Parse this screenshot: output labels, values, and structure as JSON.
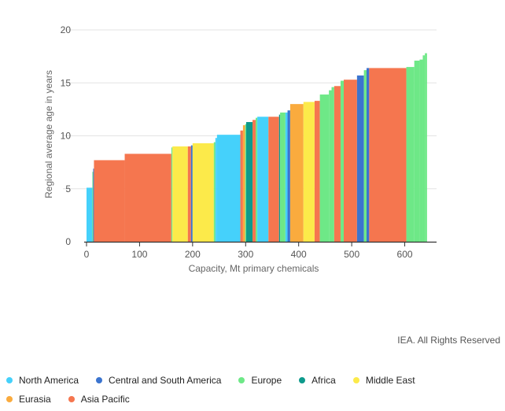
{
  "chart_data": {
    "type": "bar",
    "subtype": "variable-width step bars (capacity vs. regional average age)",
    "xlabel": "Capacity, Mt primary chemicals",
    "ylabel": "Regional average age in years",
    "xlim": [
      0,
      660
    ],
    "ylim": [
      0,
      20
    ],
    "xticks": [
      0,
      100,
      200,
      300,
      400,
      500,
      600
    ],
    "yticks": [
      0,
      5,
      10,
      15,
      20
    ],
    "grid": "horizontal",
    "series": [
      {
        "name": "North America",
        "color": "#45d1fb"
      },
      {
        "name": "Central and South America",
        "color": "#3b74cf"
      },
      {
        "name": "Europe",
        "color": "#6ee887"
      },
      {
        "name": "Africa",
        "color": "#0d9a8c"
      },
      {
        "name": "Middle East",
        "color": "#fcea4a"
      },
      {
        "name": "Eurasia",
        "color": "#faab3e"
      },
      {
        "name": "Asia Pacific",
        "color": "#f5764f"
      }
    ],
    "bars": [
      {
        "region": "North America",
        "start": 0,
        "width": 11,
        "value": 5.1
      },
      {
        "region": "Europe",
        "start": 11,
        "width": 1.5,
        "value": 6.6
      },
      {
        "region": "Central and South America",
        "start": 12.5,
        "width": 1.5,
        "value": 6.9
      },
      {
        "region": "Asia Pacific",
        "start": 14,
        "width": 58,
        "value": 7.7
      },
      {
        "region": "Asia Pacific",
        "start": 72,
        "width": 88,
        "value": 8.3
      },
      {
        "region": "Europe",
        "start": 160,
        "width": 2,
        "value": 8.9
      },
      {
        "region": "Middle East",
        "start": 162,
        "width": 29,
        "value": 9.0
      },
      {
        "region": "Asia Pacific",
        "start": 191,
        "width": 6,
        "value": 9.0
      },
      {
        "region": "Central and South America",
        "start": 197,
        "width": 3,
        "value": 9.1
      },
      {
        "region": "Middle East",
        "start": 200,
        "width": 40,
        "value": 9.3
      },
      {
        "region": "Europe",
        "start": 240,
        "width": 3,
        "value": 9.4
      },
      {
        "region": "North America",
        "start": 243,
        "width": 3,
        "value": 9.8
      },
      {
        "region": "North America",
        "start": 246,
        "width": 44,
        "value": 10.1
      },
      {
        "region": "Asia Pacific",
        "start": 290,
        "width": 5,
        "value": 10.5
      },
      {
        "region": "Eurasia",
        "start": 295,
        "width": 4,
        "value": 11.0
      },
      {
        "region": "Europe",
        "start": 299,
        "width": 2,
        "value": 11.1
      },
      {
        "region": "Africa",
        "start": 301,
        "width": 12,
        "value": 11.3
      },
      {
        "region": "Asia Pacific",
        "start": 313,
        "width": 6,
        "value": 11.5
      },
      {
        "region": "Europe",
        "start": 319,
        "width": 3,
        "value": 11.7
      },
      {
        "region": "North America",
        "start": 322,
        "width": 21,
        "value": 11.8
      },
      {
        "region": "Asia Pacific",
        "start": 343,
        "width": 20,
        "value": 11.8
      },
      {
        "region": "Africa",
        "start": 363,
        "width": 2,
        "value": 12.0
      },
      {
        "region": "Europe",
        "start": 365,
        "width": 10,
        "value": 12.2
      },
      {
        "region": "North America",
        "start": 375,
        "width": 4,
        "value": 12.2
      },
      {
        "region": "Central and South America",
        "start": 379,
        "width": 5,
        "value": 12.4
      },
      {
        "region": "Eurasia",
        "start": 384,
        "width": 25,
        "value": 13.0
      },
      {
        "region": "Middle East",
        "start": 409,
        "width": 21,
        "value": 13.2
      },
      {
        "region": "Asia Pacific",
        "start": 430,
        "width": 10,
        "value": 13.3
      },
      {
        "region": "Europe",
        "start": 440,
        "width": 17,
        "value": 13.9
      },
      {
        "region": "Europe",
        "start": 457,
        "width": 5,
        "value": 14.3
      },
      {
        "region": "Europe",
        "start": 462,
        "width": 5,
        "value": 14.6
      },
      {
        "region": "Asia Pacific",
        "start": 467,
        "width": 12,
        "value": 14.7
      },
      {
        "region": "Europe",
        "start": 479,
        "width": 6,
        "value": 15.2
      },
      {
        "region": "Asia Pacific",
        "start": 485,
        "width": 25,
        "value": 15.3
      },
      {
        "region": "Central and South America",
        "start": 510,
        "width": 13,
        "value": 15.7
      },
      {
        "region": "Europe",
        "start": 523,
        "width": 5,
        "value": 16.2
      },
      {
        "region": "Central and South America",
        "start": 528,
        "width": 5,
        "value": 16.4
      },
      {
        "region": "Asia Pacific",
        "start": 533,
        "width": 70,
        "value": 16.4
      },
      {
        "region": "Europe",
        "start": 603,
        "width": 15,
        "value": 16.5
      },
      {
        "region": "Europe",
        "start": 618,
        "width": 10,
        "value": 17.1
      },
      {
        "region": "Europe",
        "start": 628,
        "width": 6,
        "value": 17.2
      },
      {
        "region": "Europe",
        "start": 634,
        "width": 4,
        "value": 17.6
      },
      {
        "region": "Europe",
        "start": 638,
        "width": 4,
        "value": 17.8
      }
    ]
  },
  "credit": "IEA. All Rights Reserved",
  "legend": {
    "row1": [
      {
        "label": "North America",
        "color": "#45d1fb"
      },
      {
        "label": "Central and South America",
        "color": "#3b74cf"
      },
      {
        "label": "Europe",
        "color": "#6ee887"
      },
      {
        "label": "Africa",
        "color": "#0d9a8c"
      },
      {
        "label": "Middle East",
        "color": "#fcea4a"
      }
    ],
    "row2": [
      {
        "label": "Eurasia",
        "color": "#faab3e"
      },
      {
        "label": "Asia Pacific",
        "color": "#f5764f"
      }
    ]
  }
}
